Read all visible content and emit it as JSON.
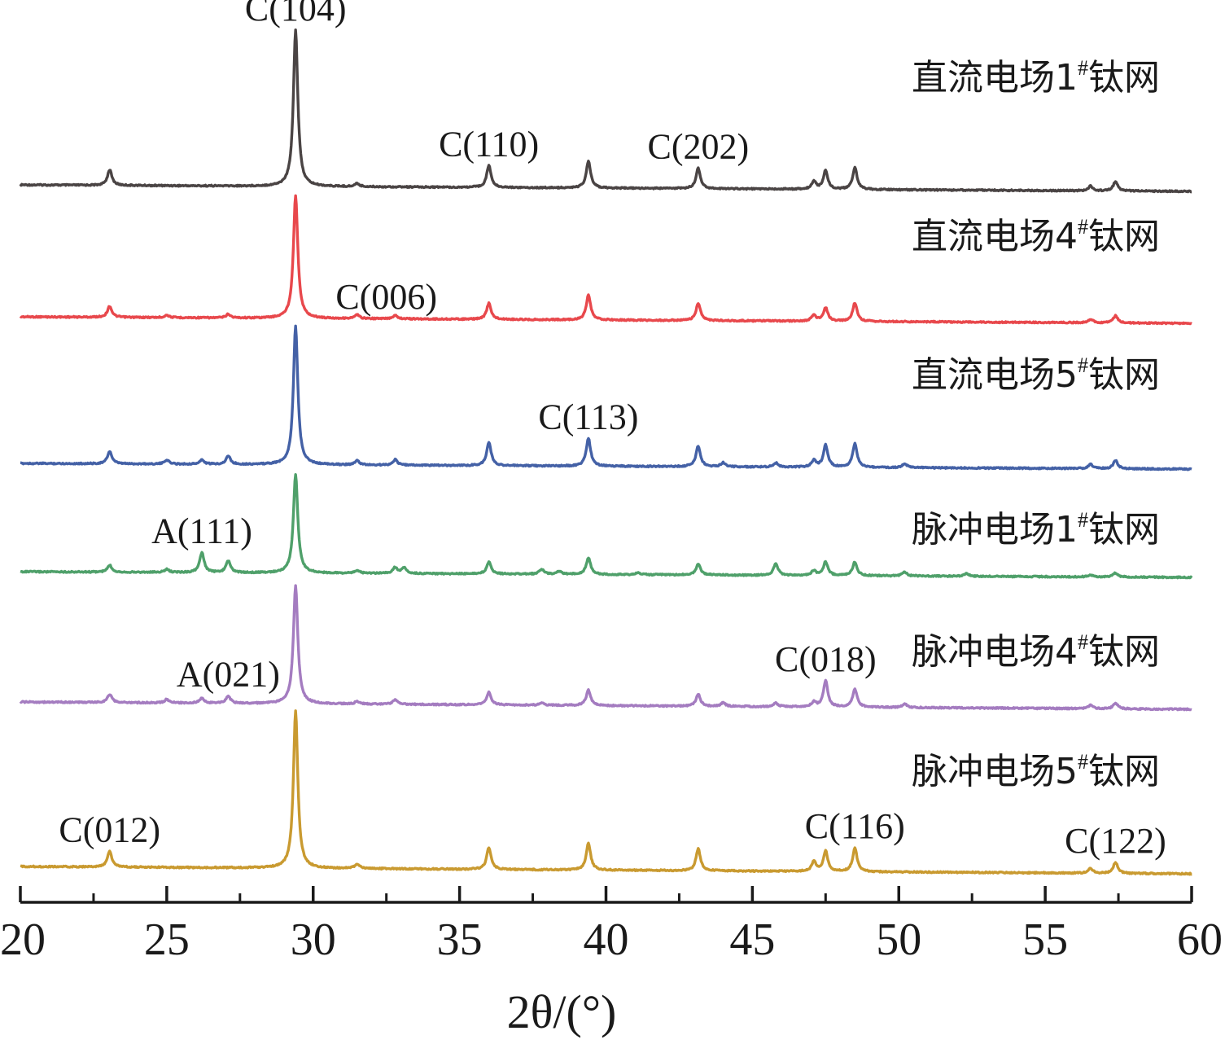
{
  "chart_data": {
    "type": "line",
    "xlabel": "2θ/(°)",
    "xlim": [
      20,
      60
    ],
    "xticks": [
      "20",
      "25",
      "30",
      "35",
      "40",
      "45",
      "50",
      "55",
      "60"
    ],
    "grid": false,
    "series_label_placement": "right, above each curve",
    "series": [
      {
        "name": "直流电场1",
        "name_sup": "#",
        "name_tail": "钛网",
        "color": "#4a4444",
        "peaks": [
          [
            23.05,
            10
          ],
          [
            29.4,
            100
          ],
          [
            31.5,
            2
          ],
          [
            36.0,
            14
          ],
          [
            39.4,
            17
          ],
          [
            43.15,
            13
          ],
          [
            47.1,
            5
          ],
          [
            47.5,
            12
          ],
          [
            48.5,
            14
          ],
          [
            56.55,
            3
          ],
          [
            57.4,
            6
          ]
        ]
      },
      {
        "name": "直流电场4",
        "name_sup": "#",
        "name_tail": "钛网",
        "color": "#e8484c",
        "peaks": [
          [
            23.05,
            9
          ],
          [
            25.0,
            2
          ],
          [
            27.1,
            3
          ],
          [
            29.4,
            100
          ],
          [
            31.5,
            3
          ],
          [
            32.8,
            3
          ],
          [
            36.0,
            13
          ],
          [
            39.4,
            20
          ],
          [
            43.15,
            14
          ],
          [
            47.1,
            5
          ],
          [
            47.5,
            11
          ],
          [
            48.5,
            15
          ],
          [
            56.55,
            3
          ],
          [
            57.4,
            6
          ]
        ]
      },
      {
        "name": "直流电场5",
        "name_sup": "#",
        "name_tail": "钛网",
        "color": "#4461a6",
        "peaks": [
          [
            23.05,
            9
          ],
          [
            25.0,
            3
          ],
          [
            26.2,
            3
          ],
          [
            27.1,
            6
          ],
          [
            29.4,
            100
          ],
          [
            31.5,
            3
          ],
          [
            32.8,
            4
          ],
          [
            36.0,
            17
          ],
          [
            39.4,
            20
          ],
          [
            43.15,
            15
          ],
          [
            44.0,
            3
          ],
          [
            45.8,
            3
          ],
          [
            47.1,
            5
          ],
          [
            47.5,
            16
          ],
          [
            48.5,
            17
          ],
          [
            50.2,
            3
          ],
          [
            56.55,
            3
          ],
          [
            57.4,
            6
          ]
        ]
      },
      {
        "name": "脉冲电场1",
        "name_sup": "#",
        "name_tail": "钛网",
        "color": "#4fa06a",
        "peaks": [
          [
            23.05,
            7
          ],
          [
            25.0,
            3
          ],
          [
            26.2,
            20
          ],
          [
            27.1,
            12
          ],
          [
            29.4,
            100
          ],
          [
            31.5,
            3
          ],
          [
            32.8,
            6
          ],
          [
            33.1,
            6
          ],
          [
            36.0,
            12
          ],
          [
            37.8,
            5
          ],
          [
            38.4,
            3
          ],
          [
            39.4,
            17
          ],
          [
            41.1,
            2
          ],
          [
            43.15,
            11
          ],
          [
            45.8,
            12
          ],
          [
            47.1,
            5
          ],
          [
            47.5,
            14
          ],
          [
            48.5,
            14
          ],
          [
            50.2,
            4
          ],
          [
            52.3,
            3
          ],
          [
            56.55,
            2
          ],
          [
            57.4,
            4
          ]
        ]
      },
      {
        "name": "脉冲电场4",
        "name_sup": "#",
        "name_tail": "钛网",
        "color": "#a47cc0",
        "peaks": [
          [
            23.05,
            7
          ],
          [
            25.0,
            3
          ],
          [
            26.2,
            4
          ],
          [
            27.1,
            6
          ],
          [
            29.4,
            100
          ],
          [
            31.5,
            2
          ],
          [
            32.8,
            4
          ],
          [
            36.0,
            11
          ],
          [
            37.8,
            2
          ],
          [
            39.4,
            13
          ],
          [
            43.15,
            10
          ],
          [
            44.0,
            3
          ],
          [
            45.8,
            3
          ],
          [
            47.1,
            4
          ],
          [
            47.5,
            22
          ],
          [
            48.5,
            15
          ],
          [
            50.2,
            3
          ],
          [
            56.55,
            3
          ],
          [
            57.4,
            5
          ]
        ]
      },
      {
        "name": "脉冲电场5",
        "name_sup": "#",
        "name_tail": "钛网",
        "color": "#c99a30",
        "peaks": [
          [
            23.05,
            10
          ],
          [
            29.4,
            100
          ],
          [
            31.5,
            3
          ],
          [
            36.0,
            14
          ],
          [
            39.4,
            17
          ],
          [
            43.15,
            14
          ],
          [
            47.1,
            6
          ],
          [
            47.5,
            13
          ],
          [
            48.5,
            15
          ],
          [
            56.55,
            3
          ],
          [
            57.4,
            7
          ]
        ]
      }
    ],
    "annotations": [
      {
        "text": "C(104)",
        "x": 29.4,
        "series": 0
      },
      {
        "text": "C(110)",
        "x": 36.0,
        "series": 0
      },
      {
        "text": "C(202)",
        "x": 43.15,
        "series": 0
      },
      {
        "text": "C(006)",
        "x": 32.5,
        "series": 1
      },
      {
        "text": "C(113)",
        "x": 39.4,
        "series": 2
      },
      {
        "text": "A(111)",
        "x": 26.2,
        "series": 3
      },
      {
        "text": "A(021)",
        "x": 27.1,
        "series": 4
      },
      {
        "text": "C(018)",
        "x": 47.5,
        "series": 4
      },
      {
        "text": "C(012)",
        "x": 23.05,
        "series": 5
      },
      {
        "text": "C(116)",
        "x": 48.5,
        "series": 5
      },
      {
        "text": "C(122)",
        "x": 57.4,
        "series": 5
      }
    ]
  }
}
